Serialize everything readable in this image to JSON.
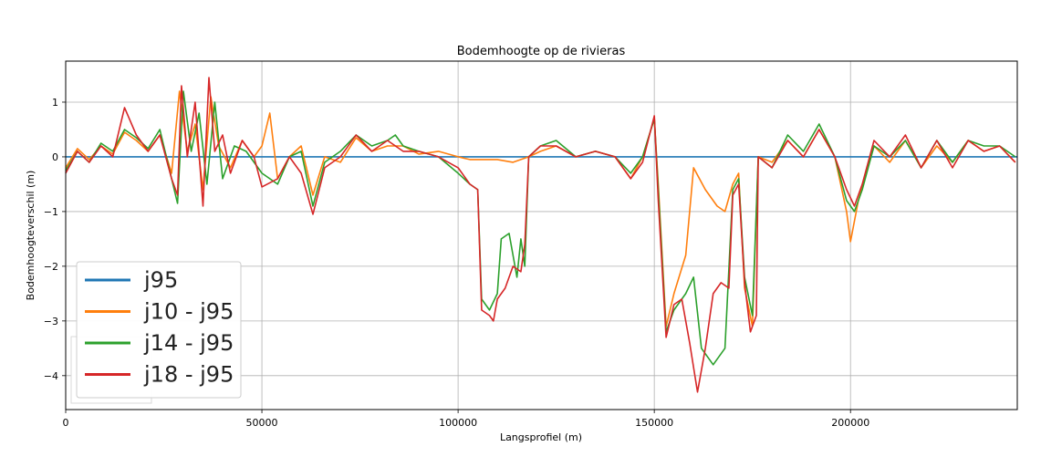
{
  "chart_data": {
    "type": "line",
    "title": "Bodemhoogte op de rivieras",
    "xlabel": "Langsprofiel (m)",
    "ylabel": "Bodemhoogteverschil (m)",
    "xlim": [
      0,
      242500
    ],
    "ylim": [
      -4.62,
      1.75
    ],
    "xticks": [
      0,
      50000,
      100000,
      150000,
      200000
    ],
    "xtick_labels": [
      "0",
      "50000",
      "100000",
      "150000",
      "200000"
    ],
    "yticks": [
      1,
      0,
      -1,
      -2,
      -3,
      -4
    ],
    "ytick_labels": [
      "1",
      "0",
      "−1",
      "−2",
      "−3",
      "−4"
    ],
    "grid": true,
    "legend_position": "lower-left",
    "series": [
      {
        "name": "j95",
        "color": "#1f77b4",
        "points": [
          [
            0,
            0
          ],
          [
            242500,
            0
          ]
        ]
      },
      {
        "name": "j10 - j95",
        "color": "#ff7f0e",
        "points": [
          [
            0,
            -0.2
          ],
          [
            3000,
            0.15
          ],
          [
            6000,
            -0.05
          ],
          [
            9000,
            0.2
          ],
          [
            12000,
            0.05
          ],
          [
            15000,
            0.45
          ],
          [
            18000,
            0.3
          ],
          [
            21000,
            0.1
          ],
          [
            24000,
            0.4
          ],
          [
            27000,
            -0.3
          ],
          [
            29000,
            1.2
          ],
          [
            31000,
            0.1
          ],
          [
            33000,
            0.6
          ],
          [
            35000,
            -0.6
          ],
          [
            37000,
            1.1
          ],
          [
            39000,
            0.2
          ],
          [
            42000,
            -0.2
          ],
          [
            45000,
            0.3
          ],
          [
            48000,
            0.0
          ],
          [
            50000,
            0.2
          ],
          [
            52000,
            0.8
          ],
          [
            54000,
            -0.4
          ],
          [
            57000,
            0.0
          ],
          [
            60000,
            0.2
          ],
          [
            63000,
            -0.7
          ],
          [
            66000,
            0.0
          ],
          [
            70000,
            -0.1
          ],
          [
            74000,
            0.35
          ],
          [
            78000,
            0.1
          ],
          [
            82000,
            0.2
          ],
          [
            86000,
            0.2
          ],
          [
            90000,
            0.05
          ],
          [
            95000,
            0.1
          ],
          [
            100000,
            0.0
          ],
          [
            103000,
            -0.05
          ],
          [
            106000,
            -0.05
          ],
          [
            110000,
            -0.05
          ],
          [
            114000,
            -0.1
          ],
          [
            118000,
            0.0
          ],
          [
            121000,
            0.1
          ],
          [
            125000,
            0.2
          ],
          [
            130000,
            0.0
          ],
          [
            135000,
            0.1
          ],
          [
            140000,
            0.0
          ],
          [
            144000,
            -0.4
          ],
          [
            147000,
            0.0
          ],
          [
            150000,
            0.7
          ],
          [
            151000,
            -0.5
          ],
          [
            153000,
            -3.1
          ],
          [
            155000,
            -2.5
          ],
          [
            158000,
            -1.8
          ],
          [
            160000,
            -0.2
          ],
          [
            163000,
            -0.6
          ],
          [
            166000,
            -0.9
          ],
          [
            168000,
            -1.0
          ],
          [
            170000,
            -0.5
          ],
          [
            171500,
            -0.3
          ],
          [
            173000,
            -2.4
          ],
          [
            175000,
            -3.1
          ],
          [
            176500,
            0.0
          ],
          [
            180000,
            -0.1
          ],
          [
            184000,
            0.3
          ],
          [
            188000,
            0.0
          ],
          [
            192000,
            0.5
          ],
          [
            196000,
            0.0
          ],
          [
            199000,
            -1.0
          ],
          [
            200000,
            -1.55
          ],
          [
            202000,
            -0.8
          ],
          [
            206000,
            0.2
          ],
          [
            210000,
            -0.1
          ],
          [
            214000,
            0.3
          ],
          [
            218000,
            -0.2
          ],
          [
            222000,
            0.2
          ],
          [
            226000,
            -0.1
          ],
          [
            230000,
            0.3
          ],
          [
            234000,
            0.1
          ],
          [
            238000,
            0.2
          ],
          [
            242000,
            -0.1
          ]
        ]
      },
      {
        "name": "j14 - j95",
        "color": "#2ca02c",
        "points": [
          [
            0,
            -0.25
          ],
          [
            3000,
            0.1
          ],
          [
            6000,
            -0.1
          ],
          [
            9000,
            0.25
          ],
          [
            12000,
            0.1
          ],
          [
            15000,
            0.5
          ],
          [
            18000,
            0.35
          ],
          [
            21000,
            0.15
          ],
          [
            24000,
            0.5
          ],
          [
            27000,
            -0.4
          ],
          [
            28500,
            -0.85
          ],
          [
            30000,
            1.2
          ],
          [
            32000,
            0.1
          ],
          [
            34000,
            0.8
          ],
          [
            36000,
            -0.5
          ],
          [
            38000,
            1.0
          ],
          [
            40000,
            -0.4
          ],
          [
            43000,
            0.2
          ],
          [
            46000,
            0.1
          ],
          [
            50000,
            -0.3
          ],
          [
            54000,
            -0.5
          ],
          [
            57000,
            0.0
          ],
          [
            60000,
            0.1
          ],
          [
            63000,
            -0.9
          ],
          [
            66000,
            -0.1
          ],
          [
            70000,
            0.1
          ],
          [
            74000,
            0.4
          ],
          [
            78000,
            0.2
          ],
          [
            82000,
            0.3
          ],
          [
            84000,
            0.4
          ],
          [
            86000,
            0.2
          ],
          [
            90000,
            0.1
          ],
          [
            95000,
            0.0
          ],
          [
            100000,
            -0.3
          ],
          [
            103000,
            -0.5
          ],
          [
            105000,
            -0.6
          ],
          [
            106000,
            -2.6
          ],
          [
            108000,
            -2.8
          ],
          [
            110000,
            -2.5
          ],
          [
            111000,
            -1.5
          ],
          [
            113000,
            -1.4
          ],
          [
            115000,
            -2.2
          ],
          [
            116000,
            -1.5
          ],
          [
            117000,
            -2.0
          ],
          [
            118000,
            0.0
          ],
          [
            121000,
            0.2
          ],
          [
            125000,
            0.3
          ],
          [
            130000,
            0.0
          ],
          [
            135000,
            0.1
          ],
          [
            140000,
            0.0
          ],
          [
            144000,
            -0.3
          ],
          [
            147000,
            0.0
          ],
          [
            150000,
            0.7
          ],
          [
            151000,
            -0.6
          ],
          [
            153000,
            -3.2
          ],
          [
            155000,
            -2.8
          ],
          [
            158000,
            -2.5
          ],
          [
            160000,
            -2.2
          ],
          [
            162000,
            -3.5
          ],
          [
            165000,
            -3.8
          ],
          [
            168000,
            -3.5
          ],
          [
            170000,
            -0.6
          ],
          [
            171500,
            -0.4
          ],
          [
            173000,
            -2.2
          ],
          [
            175000,
            -2.9
          ],
          [
            176500,
            0.0
          ],
          [
            180000,
            -0.2
          ],
          [
            184000,
            0.4
          ],
          [
            188000,
            0.1
          ],
          [
            192000,
            0.6
          ],
          [
            196000,
            0.0
          ],
          [
            199000,
            -0.8
          ],
          [
            201000,
            -1.0
          ],
          [
            203000,
            -0.6
          ],
          [
            206000,
            0.2
          ],
          [
            210000,
            0.0
          ],
          [
            214000,
            0.3
          ],
          [
            218000,
            -0.2
          ],
          [
            222000,
            0.3
          ],
          [
            226000,
            -0.1
          ],
          [
            230000,
            0.3
          ],
          [
            234000,
            0.2
          ],
          [
            238000,
            0.2
          ],
          [
            242000,
            0.0
          ]
        ]
      },
      {
        "name": "j18 - j95",
        "color": "#d62728",
        "points": [
          [
            0,
            -0.3
          ],
          [
            3000,
            0.1
          ],
          [
            6000,
            -0.1
          ],
          [
            9000,
            0.2
          ],
          [
            12000,
            0.0
          ],
          [
            15000,
            0.9
          ],
          [
            18000,
            0.4
          ],
          [
            21000,
            0.1
          ],
          [
            24000,
            0.4
          ],
          [
            27000,
            -0.4
          ],
          [
            28500,
            -0.7
          ],
          [
            29500,
            1.3
          ],
          [
            31000,
            0.0
          ],
          [
            33000,
            1.0
          ],
          [
            35000,
            -0.9
          ],
          [
            36500,
            1.45
          ],
          [
            38000,
            0.1
          ],
          [
            40000,
            0.4
          ],
          [
            42000,
            -0.3
          ],
          [
            45000,
            0.3
          ],
          [
            48000,
            0.0
          ],
          [
            50000,
            -0.55
          ],
          [
            54000,
            -0.4
          ],
          [
            57000,
            0.0
          ],
          [
            60000,
            -0.3
          ],
          [
            63000,
            -1.05
          ],
          [
            66000,
            -0.2
          ],
          [
            70000,
            0.0
          ],
          [
            74000,
            0.4
          ],
          [
            78000,
            0.1
          ],
          [
            82000,
            0.3
          ],
          [
            86000,
            0.1
          ],
          [
            90000,
            0.1
          ],
          [
            95000,
            0.0
          ],
          [
            100000,
            -0.2
          ],
          [
            103000,
            -0.5
          ],
          [
            105000,
            -0.6
          ],
          [
            106000,
            -2.8
          ],
          [
            108000,
            -2.9
          ],
          [
            109000,
            -3.0
          ],
          [
            110000,
            -2.6
          ],
          [
            112000,
            -2.4
          ],
          [
            114000,
            -2.0
          ],
          [
            116000,
            -2.1
          ],
          [
            117000,
            -1.6
          ],
          [
            118000,
            0.0
          ],
          [
            121000,
            0.2
          ],
          [
            125000,
            0.2
          ],
          [
            130000,
            0.0
          ],
          [
            135000,
            0.1
          ],
          [
            140000,
            0.0
          ],
          [
            144000,
            -0.4
          ],
          [
            147000,
            -0.1
          ],
          [
            150000,
            0.75
          ],
          [
            151000,
            -0.8
          ],
          [
            153000,
            -3.3
          ],
          [
            155000,
            -2.7
          ],
          [
            157000,
            -2.6
          ],
          [
            159000,
            -3.4
          ],
          [
            161000,
            -4.3
          ],
          [
            163000,
            -3.5
          ],
          [
            165000,
            -2.5
          ],
          [
            167000,
            -2.3
          ],
          [
            169000,
            -2.4
          ],
          [
            170000,
            -0.7
          ],
          [
            171500,
            -0.5
          ],
          [
            173000,
            -2.3
          ],
          [
            174500,
            -3.2
          ],
          [
            176000,
            -2.9
          ],
          [
            176500,
            0.0
          ],
          [
            180000,
            -0.2
          ],
          [
            184000,
            0.3
          ],
          [
            188000,
            0.0
          ],
          [
            192000,
            0.5
          ],
          [
            196000,
            0.0
          ],
          [
            199000,
            -0.6
          ],
          [
            201000,
            -0.9
          ],
          [
            203000,
            -0.5
          ],
          [
            206000,
            0.3
          ],
          [
            210000,
            0.0
          ],
          [
            214000,
            0.4
          ],
          [
            218000,
            -0.2
          ],
          [
            222000,
            0.3
          ],
          [
            226000,
            -0.2
          ],
          [
            230000,
            0.3
          ],
          [
            234000,
            0.1
          ],
          [
            238000,
            0.2
          ],
          [
            242000,
            -0.1
          ]
        ]
      }
    ]
  }
}
